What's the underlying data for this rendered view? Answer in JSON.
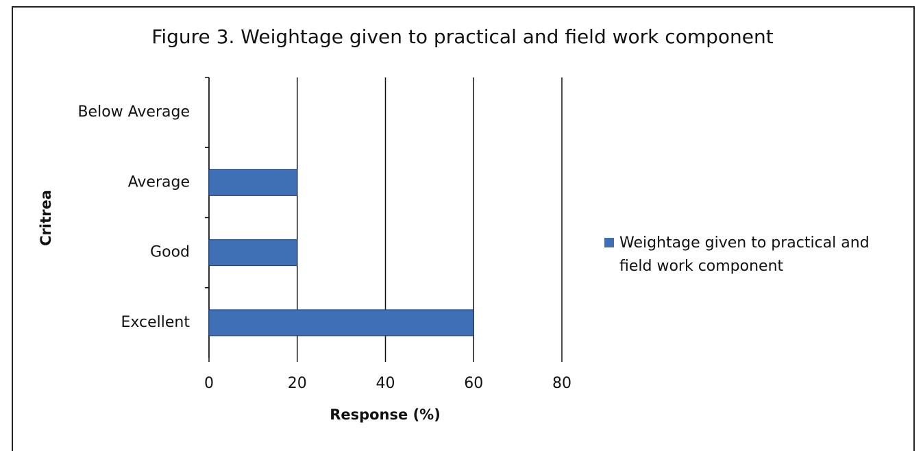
{
  "chart_data": {
    "type": "hbar",
    "title": "Figure 3. Weightage given to practical and field work component",
    "x_label": "Response (%)",
    "y_label": "Critrea",
    "categories": [
      "Below Average",
      "Average",
      "Good",
      "Excellent"
    ],
    "series": [
      {
        "name": "Weightage given to practical and field work component",
        "color": "#3f6fb5",
        "values": [
          0,
          20,
          20,
          60
        ]
      }
    ],
    "xlim": [
      0,
      80
    ],
    "xticks": [
      0,
      20,
      40,
      60,
      80
    ],
    "grid": true,
    "legend": "right"
  }
}
